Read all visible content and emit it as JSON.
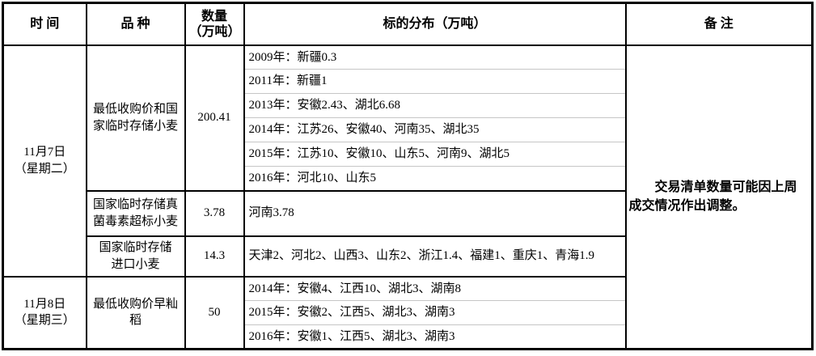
{
  "header": {
    "time": "时  间",
    "variety": "品  种",
    "quantity": "数量\n（万吨）",
    "distribution": "标的分布（万吨）",
    "remark": "备  注"
  },
  "groups": [
    {
      "date": "11月7日\n（星期二）",
      "varieties": [
        {
          "name": "最低收购价和国\n家临时存储小麦",
          "quantity": "200.41",
          "targets": [
            "2009年：新疆0.3",
            "2011年：新疆1",
            "2013年：安徽2.43、湖北6.68",
            "2014年：江苏26、安徽40、河南35、湖北35",
            "2015年：江苏10、安徽10、山东5、河南9、湖北5",
            "2016年：河北10、山东5"
          ]
        },
        {
          "name": "国家临时存储真\n菌毒素超标小麦",
          "quantity": "3.78",
          "targets": [
            "河南3.78"
          ]
        },
        {
          "name": "国家临时存储\n进口小麦",
          "quantity": "14.3",
          "targets": [
            "天津2、河北2、山西3、山东2、浙江1.4、福建1、重庆1、青海1.9"
          ]
        }
      ]
    },
    {
      "date": "11月8日\n（星期三）",
      "varieties": [
        {
          "name": "最低收购价早籼\n稻",
          "quantity": "50",
          "targets": [
            "2014年：安徽4、江西10、湖北3、湖南8",
            "2015年：安徽2、江西5、湖北3、湖南3",
            "2016年：安徽1、江西5、湖北3、湖南3"
          ]
        }
      ]
    }
  ],
  "remark": "交易清单数量可能因上周成交情况作出调整。",
  "colors": {
    "border": "#000000",
    "sub_line": "#c6c6c6"
  }
}
